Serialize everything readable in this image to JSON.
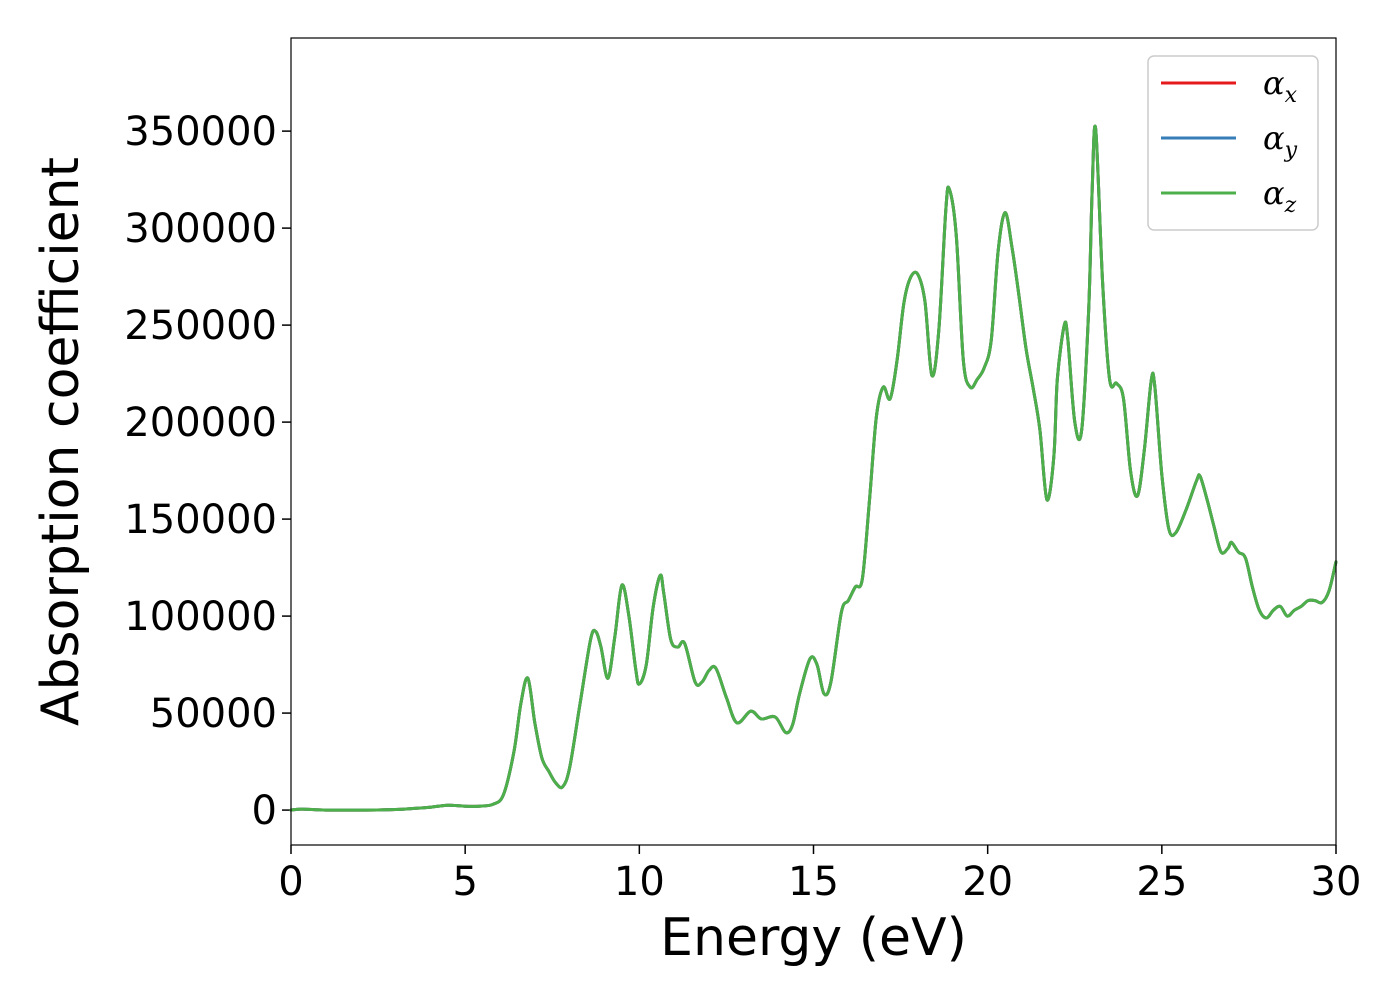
{
  "chart_data": {
    "type": "line",
    "title": "",
    "xlabel": "Energy (eV)",
    "ylabel": "Absorption coefficient",
    "xlim": [
      0,
      30
    ],
    "ylim": [
      -18000,
      398000
    ],
    "grid": false,
    "legend_position": "top-right",
    "xticks": [
      0,
      5,
      10,
      15,
      20,
      25,
      30
    ],
    "xtick_labels": [
      "0",
      "5",
      "10",
      "15",
      "20",
      "25",
      "30"
    ],
    "yticks": [
      0,
      50000,
      100000,
      150000,
      200000,
      250000,
      300000,
      350000
    ],
    "ytick_labels": [
      "0",
      "50000",
      "100000",
      "150000",
      "200000",
      "250000",
      "300000",
      "350000"
    ],
    "series": [
      {
        "name": "αx",
        "symbol": "α",
        "subscript": "x",
        "color": "#e41a1c"
      },
      {
        "name": "αy",
        "symbol": "α",
        "subscript": "y",
        "color": "#377eb8"
      },
      {
        "name": "αz",
        "symbol": "α",
        "subscript": "z",
        "color": "#4daf4a"
      }
    ],
    "x": [
      0,
      0.3,
      1.0,
      2.0,
      3.0,
      3.5,
      4.0,
      4.5,
      5.0,
      5.4,
      5.8,
      6.1,
      6.4,
      6.6,
      6.8,
      7.0,
      7.2,
      7.4,
      7.6,
      7.8,
      8.0,
      8.3,
      8.6,
      8.75,
      8.9,
      9.1,
      9.3,
      9.5,
      9.7,
      9.9,
      10.0,
      10.2,
      10.4,
      10.6,
      10.7,
      10.9,
      11.1,
      11.3,
      11.6,
      11.8,
      12.0,
      12.2,
      12.5,
      12.8,
      13.2,
      13.5,
      13.9,
      14.2,
      14.4,
      14.6,
      14.9,
      15.1,
      15.3,
      15.5,
      15.8,
      16.0,
      16.2,
      16.4,
      16.6,
      16.8,
      17.0,
      17.2,
      17.4,
      17.6,
      17.8,
      18.0,
      18.2,
      18.4,
      18.6,
      18.8,
      18.9,
      19.1,
      19.3,
      19.5,
      19.7,
      19.9,
      20.1,
      20.3,
      20.5,
      20.7,
      20.9,
      21.1,
      21.3,
      21.5,
      21.7,
      21.9,
      22.0,
      22.2,
      22.3,
      22.5,
      22.7,
      22.9,
      23.0,
      23.1,
      23.3,
      23.5,
      23.7,
      23.9,
      24.1,
      24.3,
      24.5,
      24.7,
      24.8,
      25.0,
      25.2,
      25.4,
      25.7,
      26.0,
      26.1,
      26.3,
      26.5,
      26.7,
      26.9,
      27.0,
      27.2,
      27.4,
      27.6,
      27.8,
      28.0,
      28.2,
      28.4,
      28.6,
      28.8,
      29.0,
      29.2,
      29.4,
      29.6,
      29.8,
      30.0
    ],
    "y": [
      0,
      500,
      0,
      0,
      300,
      800,
      1500,
      2500,
      2000,
      2000,
      3000,
      8000,
      30000,
      55000,
      68000,
      45000,
      27000,
      20000,
      14000,
      12000,
      22000,
      55000,
      88000,
      92000,
      84000,
      68000,
      90000,
      116000,
      100000,
      72000,
      65000,
      75000,
      105000,
      121000,
      112000,
      88000,
      84000,
      86000,
      66000,
      66000,
      72000,
      73000,
      58000,
      45000,
      51000,
      47000,
      48000,
      40000,
      44000,
      60000,
      78000,
      75000,
      60000,
      66000,
      102000,
      108000,
      115000,
      119000,
      158000,
      202000,
      218000,
      212000,
      232000,
      262000,
      275000,
      276000,
      262000,
      224000,
      248000,
      310000,
      320000,
      296000,
      232000,
      218000,
      222000,
      228000,
      242000,
      288000,
      308000,
      290000,
      265000,
      238000,
      218000,
      196000,
      160000,
      182000,
      222000,
      250000,
      243000,
      200000,
      196000,
      258000,
      320000,
      351000,
      272000,
      222000,
      220000,
      212000,
      175000,
      162000,
      186000,
      222000,
      218000,
      173000,
      145000,
      143000,
      155000,
      170000,
      172000,
      160000,
      146000,
      133000,
      135000,
      138000,
      133000,
      130000,
      115000,
      103000,
      99000,
      103000,
      105000,
      100000,
      103000,
      105000,
      108000,
      108000,
      107000,
      113000,
      128000
    ]
  }
}
